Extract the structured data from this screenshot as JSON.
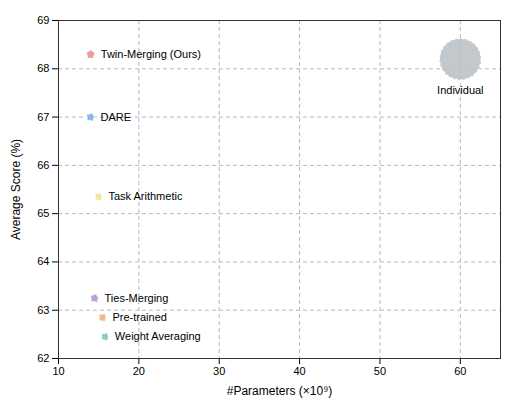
{
  "chart_data": {
    "type": "scatter",
    "labels": [
      "Twin-Merging (Ours)",
      "DARE",
      "Task Arithmetic",
      "Ties-Merging",
      "Pre-trained",
      "Weight Averaging",
      "Individual"
    ],
    "x": [
      14.0,
      14.0,
      15.0,
      14.5,
      15.5,
      15.8,
      60.0
    ],
    "values": [
      68.3,
      67.0,
      65.35,
      63.25,
      62.85,
      62.45,
      68.2
    ],
    "radius": [
      0.55,
      0.52,
      0.5,
      0.52,
      0.5,
      0.5,
      2.8
    ],
    "colors": [
      "#f08888",
      "#7aacdc",
      "#f0e088",
      "#b090d0",
      "#f0a878",
      "#70c8c0",
      "#b8bec4"
    ],
    "xlabel": "#Parameters (×10⁹)",
    "ylabel": "Average Score (%)",
    "xlim": [
      10,
      65
    ],
    "ylim": [
      62,
      69
    ],
    "xticks": [
      10,
      20,
      30,
      40,
      50,
      60
    ],
    "yticks": [
      62,
      63,
      64,
      65,
      66,
      67,
      68,
      69
    ],
    "grid": true
  }
}
